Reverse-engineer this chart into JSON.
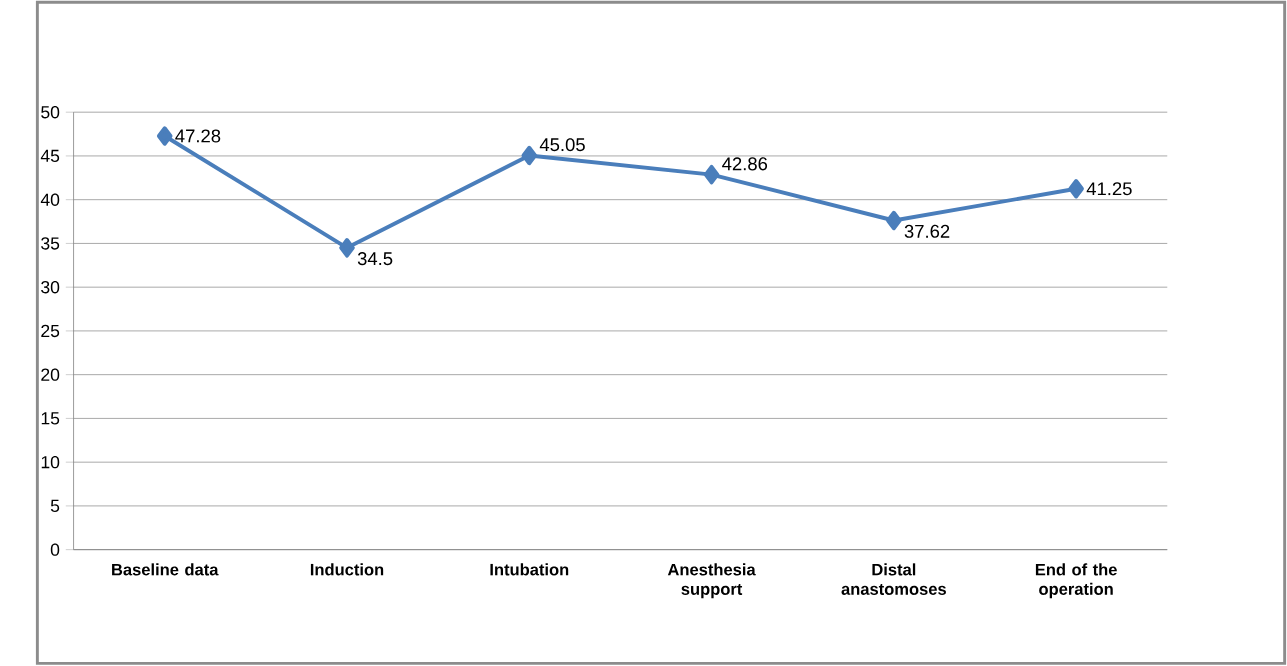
{
  "chart_data": {
    "type": "line",
    "categories": [
      "Baseline data",
      "Induction",
      "Intubation",
      "Anesthesia support",
      "Distal anastomoses",
      "End of the operation"
    ],
    "series": [
      {
        "color": "#4a7ebb",
        "values": [
          47.28,
          34.5,
          45.05,
          42.86,
          37.62,
          41.25
        ]
      }
    ],
    "ylim": [
      0,
      50
    ],
    "yticks": [
      0,
      5,
      10,
      15,
      20,
      25,
      30,
      35,
      40,
      45,
      50
    ],
    "grid": "y",
    "marker": "diamond",
    "line_style": "solid",
    "data_labels": true
  }
}
